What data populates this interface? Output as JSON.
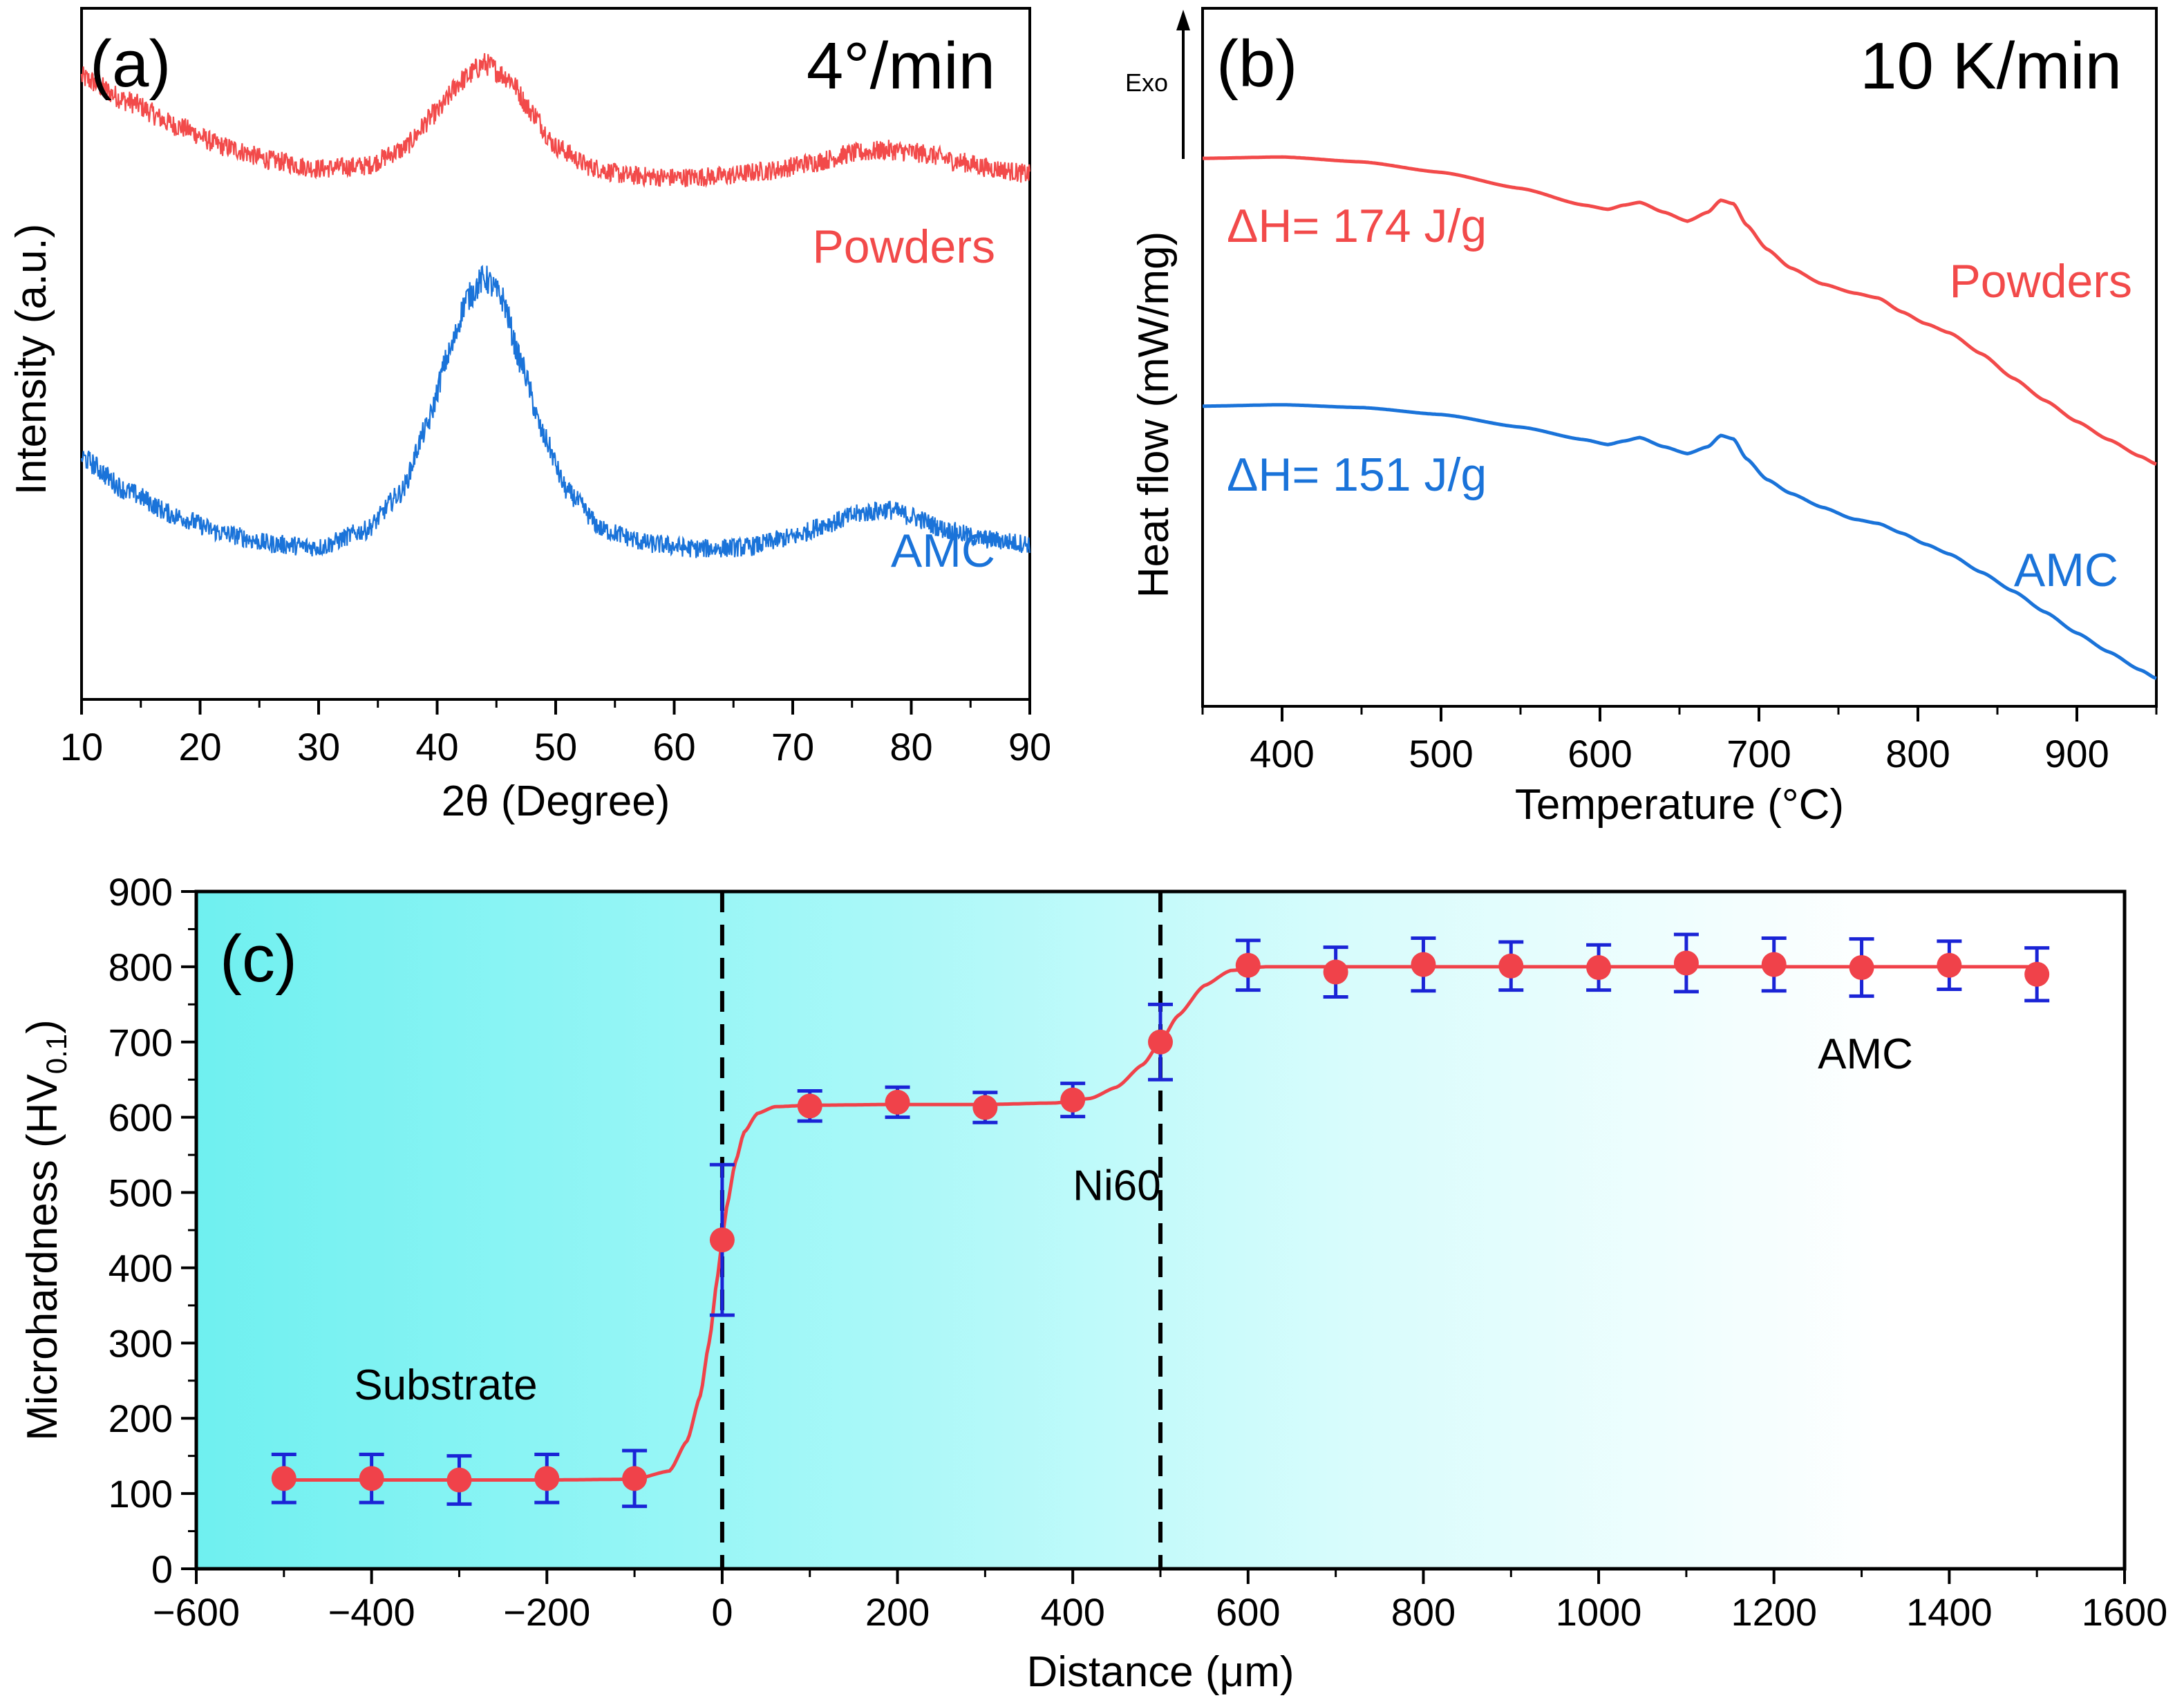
{
  "colors": {
    "red": "#f24a4a",
    "blue": "#1a73d9",
    "point": "#f0424a",
    "errbar": "#1a24d6",
    "axis": "#000000",
    "teal": "#7df3f3"
  },
  "chart_data": [
    {
      "panel": "a",
      "type": "line",
      "panel_label": "(a)",
      "rate": "4°/min",
      "xlabel": "2θ (Degree)",
      "ylabel": "Intensity (a.u.)",
      "xlim": [
        10,
        90
      ],
      "ylim": [
        0,
        1
      ],
      "xticks": [
        10,
        20,
        30,
        40,
        50,
        60,
        70,
        80,
        90
      ],
      "yticks_shown": false,
      "series": [
        {
          "name": "Powders",
          "color": "#f24a4a",
          "baseline": 0.62,
          "noise": 0.012,
          "x": [
            10,
            14,
            18,
            22,
            26,
            30,
            34,
            37,
            40,
            42,
            44,
            46,
            48,
            50,
            53,
            56,
            60,
            64,
            68,
            72,
            75,
            78,
            81,
            84,
            87,
            90
          ],
          "y": [
            0.9,
            0.865,
            0.83,
            0.8,
            0.78,
            0.768,
            0.772,
            0.795,
            0.85,
            0.895,
            0.92,
            0.9,
            0.85,
            0.8,
            0.77,
            0.758,
            0.755,
            0.757,
            0.765,
            0.778,
            0.79,
            0.795,
            0.79,
            0.778,
            0.768,
            0.76
          ]
        },
        {
          "name": "AMC",
          "color": "#1a73d9",
          "noise": 0.014,
          "x": [
            10,
            14,
            18,
            22,
            26,
            30,
            34,
            37,
            39,
            41,
            42.5,
            44,
            45.5,
            47,
            49,
            51,
            54,
            58,
            62,
            66,
            70,
            73,
            76,
            78,
            80,
            83,
            86,
            90
          ],
          "y": [
            0.35,
            0.3,
            0.265,
            0.24,
            0.225,
            0.22,
            0.245,
            0.3,
            0.39,
            0.5,
            0.58,
            0.61,
            0.58,
            0.49,
            0.38,
            0.3,
            0.245,
            0.225,
            0.218,
            0.22,
            0.235,
            0.255,
            0.27,
            0.275,
            0.265,
            0.245,
            0.232,
            0.225
          ]
        }
      ],
      "legend": [
        {
          "text": "Powders",
          "color": "#f24a4a"
        },
        {
          "text": "AMC",
          "color": "#1a73d9"
        }
      ]
    },
    {
      "panel": "b",
      "type": "line",
      "panel_label": "(b)",
      "rate": "10 K/min",
      "xlabel": "Temperature (°C)",
      "ylabel": "Heat flow (mW/mg)",
      "exo_label": "Exo",
      "xlim": [
        350,
        950
      ],
      "ylim": [
        0,
        1
      ],
      "xticks": [
        400,
        500,
        600,
        700,
        800,
        900
      ],
      "series": [
        {
          "name": "Powders",
          "color": "#f24a4a",
          "annotation": "ΔH= 174 J/g",
          "x": [
            350,
            400,
            450,
            500,
            550,
            590,
            605,
            615,
            625,
            640,
            655,
            668,
            676,
            684,
            692,
            705,
            720,
            740,
            760,
            775,
            790,
            805,
            820,
            840,
            860,
            880,
            900,
            920,
            940,
            950
          ],
          "y": [
            0.785,
            0.787,
            0.78,
            0.765,
            0.742,
            0.718,
            0.712,
            0.718,
            0.722,
            0.708,
            0.695,
            0.708,
            0.725,
            0.72,
            0.69,
            0.655,
            0.628,
            0.605,
            0.592,
            0.585,
            0.565,
            0.548,
            0.535,
            0.505,
            0.47,
            0.438,
            0.408,
            0.382,
            0.358,
            0.347
          ]
        },
        {
          "name": "AMC",
          "color": "#1a73d9",
          "annotation": "ΔH= 151 J/g",
          "x": [
            350,
            400,
            450,
            500,
            550,
            590,
            605,
            615,
            625,
            640,
            655,
            668,
            676,
            684,
            692,
            705,
            720,
            740,
            760,
            775,
            790,
            805,
            820,
            840,
            860,
            880,
            900,
            920,
            940,
            950
          ],
          "y": [
            0.43,
            0.432,
            0.428,
            0.418,
            0.4,
            0.382,
            0.375,
            0.38,
            0.385,
            0.372,
            0.362,
            0.372,
            0.388,
            0.383,
            0.355,
            0.325,
            0.305,
            0.285,
            0.268,
            0.262,
            0.248,
            0.232,
            0.218,
            0.192,
            0.165,
            0.135,
            0.105,
            0.078,
            0.052,
            0.04
          ]
        }
      ],
      "legend": [
        {
          "text": "Powders",
          "color": "#f24a4a"
        },
        {
          "text": "AMC",
          "color": "#1a73d9"
        }
      ]
    },
    {
      "panel": "c",
      "type": "scatter",
      "panel_label": "(c)",
      "xlabel": "Distance (μm)",
      "ylabel_main": "Microhardness (HV",
      "ylabel_sub": "0.1",
      "ylabel_close": ")",
      "xlim": [
        -600,
        1600
      ],
      "ylim": [
        0,
        900
      ],
      "xticks": [
        -600,
        -400,
        -200,
        0,
        200,
        400,
        600,
        800,
        1000,
        1200,
        1400,
        1600
      ],
      "xtick_labels": [
        "−600",
        "−400",
        "−200",
        "0",
        "200",
        "400",
        "600",
        "800",
        "1000",
        "1200",
        "1400",
        "1600"
      ],
      "yticks": [
        0,
        100,
        200,
        300,
        400,
        500,
        600,
        700,
        800,
        900
      ],
      "boundaries": [
        0,
        500
      ],
      "regions": [
        {
          "text": "Substrate",
          "x": -570,
          "y": 225
        },
        {
          "text": "Ni60",
          "x": 250,
          "y": 490
        },
        {
          "text": "AMC",
          "x": 1100,
          "y": 665
        }
      ],
      "points": {
        "x": [
          -500,
          -400,
          -300,
          -200,
          -100,
          0,
          100,
          200,
          300,
          400,
          500,
          600,
          700,
          800,
          900,
          1000,
          1100,
          1200,
          1300,
          1400,
          1500
        ],
        "y": [
          120,
          120,
          118,
          120,
          120,
          437,
          615,
          620,
          613,
          623,
          700,
          802,
          793,
          803,
          801,
          799,
          805,
          803,
          799,
          802,
          790
        ],
        "err": [
          32,
          32,
          32,
          32,
          37,
          100,
          20,
          20,
          20,
          22,
          50,
          33,
          33,
          35,
          32,
          30,
          38,
          35,
          38,
          32,
          35
        ]
      },
      "fit": {
        "x": [
          -500,
          -200,
          -100,
          -60,
          -40,
          -25,
          -15,
          -5,
          0,
          5,
          15,
          25,
          40,
          60,
          100,
          200,
          300,
          380,
          420,
          450,
          480,
          500,
          520,
          550,
          580,
          620,
          700,
          1000,
          1500
        ],
        "y": [
          118,
          118,
          119,
          130,
          170,
          230,
          300,
          390,
          437,
          480,
          540,
          580,
          605,
          614,
          616,
          617,
          617,
          619,
          625,
          640,
          670,
          700,
          735,
          775,
          795,
          800,
          800,
          800,
          800
        ]
      }
    }
  ]
}
